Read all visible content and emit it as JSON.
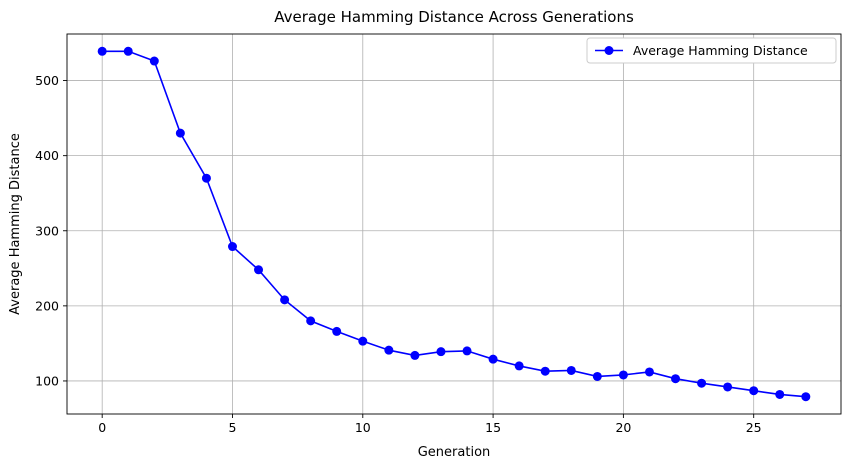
{
  "chart_data": {
    "type": "line",
    "title": "Average Hamming Distance Across Generations",
    "xlabel": "Generation",
    "ylabel": "Average Hamming Distance",
    "x": [
      0,
      1,
      2,
      3,
      4,
      5,
      6,
      7,
      8,
      9,
      10,
      11,
      12,
      13,
      14,
      15,
      16,
      17,
      18,
      19,
      20,
      21,
      22,
      23,
      24,
      25,
      26,
      27
    ],
    "series": [
      {
        "name": "Average Hamming Distance",
        "color": "#0000ff",
        "marker": "circle",
        "values": [
          539,
          539,
          526,
          430,
          370,
          279,
          248,
          208,
          180,
          166,
          153,
          141,
          134,
          139,
          140,
          129,
          120,
          113,
          114,
          106,
          108,
          112,
          103,
          97,
          92,
          87,
          82,
          79
        ]
      }
    ],
    "xlim": [
      -1.35,
      28.35
    ],
    "ylim": [
      56,
      562
    ],
    "xticks": [
      0,
      5,
      10,
      15,
      20,
      25
    ],
    "yticks": [
      100,
      200,
      300,
      400,
      500
    ],
    "grid": true,
    "legend_position": "top-right"
  }
}
